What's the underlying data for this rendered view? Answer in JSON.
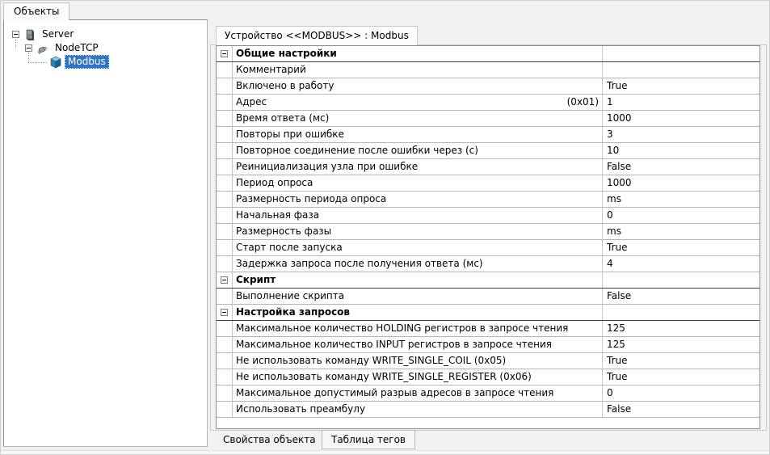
{
  "window": {
    "objects_tab": "Объекты"
  },
  "tree": {
    "items": [
      {
        "label": "Server",
        "icon": "server-icon",
        "level": 0,
        "expander": true,
        "selected": false
      },
      {
        "label": "NodeTCP",
        "icon": "node-tcp-icon",
        "level": 1,
        "expander": true,
        "selected": false
      },
      {
        "label": "Modbus",
        "icon": "device-cube-icon",
        "level": 2,
        "expander": false,
        "selected": true
      }
    ]
  },
  "device_panel": {
    "tab_title": "Устройство <<MODBUS>> : Modbus",
    "bottom_tabs": [
      {
        "label": "Свойства объекта",
        "active": true
      },
      {
        "label": "Таблица тегов",
        "active": false
      }
    ],
    "properties": [
      {
        "type": "group",
        "name": "Общие настройки",
        "value": ""
      },
      {
        "type": "row",
        "name": "Комментарий",
        "value": ""
      },
      {
        "type": "row",
        "name": "Включено в работу",
        "value": "True"
      },
      {
        "type": "row",
        "name": "Адрес",
        "name_right": "(0x01)",
        "value": "1"
      },
      {
        "type": "row",
        "name": "Время ответа (мс)",
        "value": "1000"
      },
      {
        "type": "row",
        "name": "Повторы при ошибке",
        "value": "3"
      },
      {
        "type": "row",
        "name": "Повторное соединение после ошибки через (с)",
        "value": "10"
      },
      {
        "type": "row",
        "name": "Реинициализация узла при ошибке",
        "value": "False"
      },
      {
        "type": "row",
        "name": "Период опроса",
        "value": "1000"
      },
      {
        "type": "row",
        "name": "Размерность периода опроса",
        "value": "ms"
      },
      {
        "type": "row",
        "name": "Начальная фаза",
        "value": "0"
      },
      {
        "type": "row",
        "name": "Размерность фазы",
        "value": "ms"
      },
      {
        "type": "row",
        "name": "Старт после запуска",
        "value": "True"
      },
      {
        "type": "row",
        "name": "Задержка запроса после получения ответа (мс)",
        "value": "4"
      },
      {
        "type": "group",
        "name": "Скрипт",
        "value": ""
      },
      {
        "type": "row",
        "name": "Выполнение скрипта",
        "value": "False"
      },
      {
        "type": "group",
        "name": "Настройка запросов",
        "value": ""
      },
      {
        "type": "row",
        "name": "Максимальное количество HOLDING регистров в запросе чтения",
        "value": "125"
      },
      {
        "type": "row",
        "name": "Максимальное количество INPUT регистров в запросе чтения",
        "value": "125"
      },
      {
        "type": "row",
        "name": "Не использовать команду WRITE_SINGLE_COIL (0x05)",
        "value": "True"
      },
      {
        "type": "row",
        "name": "Не использовать команду WRITE_SINGLE_REGISTER (0x06)",
        "value": "True"
      },
      {
        "type": "row",
        "name": "Максимальное допустимый разрыв адресов в запросе чтения",
        "value": "0"
      },
      {
        "type": "row",
        "name": "Использовать преамбулу",
        "value": "False"
      }
    ]
  },
  "colors": {
    "selection_bg": "#3374c2",
    "selection_text": "#ffffff",
    "grid_line": "#b6b6b6",
    "group_border": "#3f3f3f",
    "window_bg": "#f1f1f1",
    "panel_bg": "#ffffff",
    "device_cube": "#2d7fb8"
  }
}
